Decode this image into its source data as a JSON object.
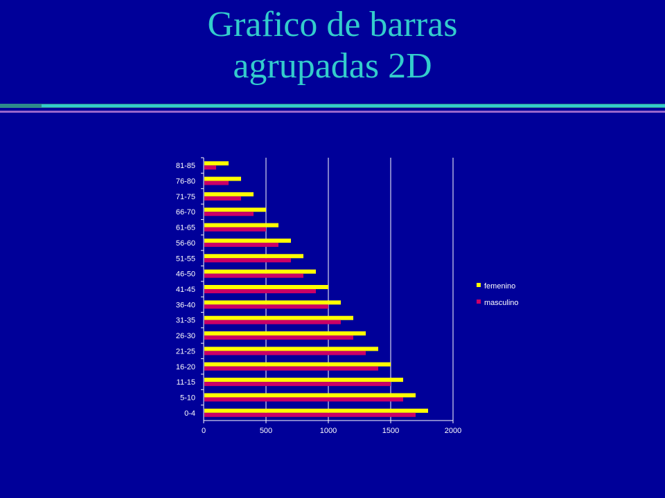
{
  "slide": {
    "title_line1": "Grafico de barras",
    "title_line2": "agrupadas 2D"
  },
  "colors": {
    "background": "#000099",
    "title": "#33CCCC",
    "femenino": "#FFFF00",
    "masculino": "#CC0066",
    "grid": "#FFFFFF"
  },
  "chart_data": {
    "type": "bar",
    "orientation": "horizontal",
    "categories": [
      "0-4",
      "5-10",
      "11-15",
      "16-20",
      "21-25",
      "26-30",
      "31-35",
      "36-40",
      "41-45",
      "46-50",
      "51-55",
      "56-60",
      "61-65",
      "66-70",
      "71-75",
      "76-80",
      "81-85"
    ],
    "series": [
      {
        "name": "femenino",
        "color": "#FFFF00",
        "values": [
          1800,
          1700,
          1600,
          1500,
          1400,
          1300,
          1200,
          1100,
          1000,
          900,
          800,
          700,
          600,
          500,
          400,
          300,
          200
        ]
      },
      {
        "name": "masculino",
        "color": "#CC0066",
        "values": [
          1700,
          1600,
          1500,
          1400,
          1300,
          1200,
          1100,
          1000,
          900,
          800,
          700,
          600,
          500,
          400,
          300,
          200,
          100
        ]
      }
    ],
    "xlim": [
      0,
      2000
    ],
    "xticks": [
      "0",
      "500",
      "1000",
      "1500",
      "2000"
    ],
    "grid": true,
    "legend_position": "right"
  }
}
